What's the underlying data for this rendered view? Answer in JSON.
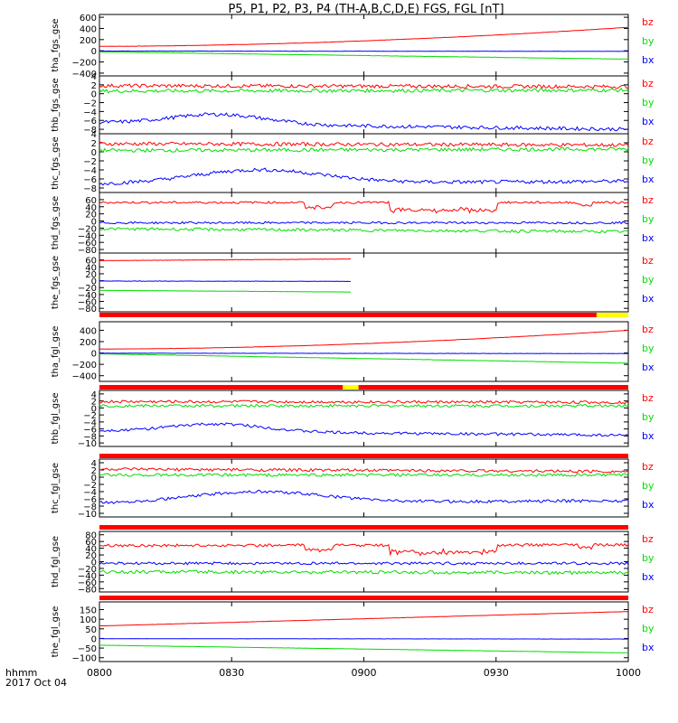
{
  "title": "P5, P1, P2, P3, P4 (TH-A,B,C,D,E) FGS, FGL [nT]",
  "colors": {
    "bx": "#0000ff",
    "by": "#00dd00",
    "bz": "#ff0000",
    "flag_ok": "#ff0000",
    "flag_gap": "#ffff00",
    "axis": "#000000"
  },
  "chart_data": {
    "type": "line",
    "title": "P5, P1, P2, P3, P4 (TH-A,B,C,D,E) FGS, FGL [nT]",
    "x_label": "hhmm",
    "x_sub_label": "2017 Oct 04",
    "x_ticks": [
      "0800",
      "0830",
      "0900",
      "0930",
      "1000"
    ],
    "x_range": [
      "08:00",
      "10:00"
    ],
    "legend": [
      "bz",
      "by",
      "bx"
    ],
    "panels": [
      {
        "ylabel": "tha_fgs_gse",
        "ylim": [
          -450,
          650
        ],
        "yticks": [
          600,
          400,
          200,
          0,
          -200,
          -400
        ],
        "yticklabels": [
          "600",
          "400",
          "200",
          "0",
          "−200",
          "−400"
        ],
        "end_hours": 2.0,
        "series": [
          {
            "name": "bz",
            "start": 80,
            "end": 420,
            "noise": 2,
            "curve": 1.8
          },
          {
            "name": "by",
            "start": -20,
            "end": -150,
            "noise": 2,
            "curve": 1
          },
          {
            "name": "bx",
            "start": -5,
            "end": -10,
            "noise": 2,
            "curve": 1
          }
        ]
      },
      {
        "ylabel": "thb_fgs_gse",
        "ylim": [
          -9,
          4
        ],
        "yticks": [
          4,
          2,
          0,
          -2,
          -4,
          -6,
          -8
        ],
        "yticklabels": [
          "4",
          "2",
          "0",
          "−2",
          "−4",
          "−6",
          "−8"
        ],
        "end_hours": 2.0,
        "series": [
          {
            "name": "bz",
            "start": 1.8,
            "end": 1.6,
            "noise": 0.4
          },
          {
            "name": "by",
            "start": 0.6,
            "end": 0.8,
            "noise": 0.4
          },
          {
            "name": "bx",
            "start": -6.5,
            "end": -8.0,
            "noise": 0.4,
            "bumps": [
              [
                0.45,
                -4.3,
                0.25
              ]
            ]
          }
        ]
      },
      {
        "ylabel": "thc_fgs_gse",
        "ylim": [
          -9,
          4
        ],
        "yticks": [
          4,
          2,
          0,
          -2,
          -4,
          -6,
          -8
        ],
        "yticklabels": [
          "4",
          "2",
          "0",
          "−2",
          "−4",
          "−6",
          "−8"
        ],
        "end_hours": 2.0,
        "series": [
          {
            "name": "bz",
            "start": 1.8,
            "end": 1.5,
            "noise": 0.4
          },
          {
            "name": "by",
            "start": 0.3,
            "end": 0.6,
            "noise": 0.4
          },
          {
            "name": "bx",
            "start": -7.2,
            "end": -6.5,
            "noise": 0.4,
            "bumps": [
              [
                0.6,
                -4.2,
                0.35
              ]
            ]
          }
        ]
      },
      {
        "ylabel": "thd_fgs_gse",
        "ylim": [
          -90,
          80
        ],
        "yticks": [
          60,
          40,
          20,
          0,
          -20,
          -40,
          -60,
          -80
        ],
        "yticklabels": [
          "60",
          "40",
          "20",
          "0",
          "−20",
          "−40",
          "−60",
          "−80"
        ],
        "end_hours": 2.0,
        "series": [
          {
            "name": "bz",
            "start": 52,
            "end": 52,
            "noise": 3,
            "dips": [
              [
                0.78,
                0.88,
                15
              ],
              [
                1.1,
                1.5,
                25
              ],
              [
                1.81,
                1.86,
                10
              ]
            ]
          },
          {
            "name": "by",
            "start": -22,
            "end": -30,
            "noise": 4
          },
          {
            "name": "bx",
            "start": -5,
            "end": -5,
            "noise": 3
          }
        ]
      },
      {
        "ylabel": "the_fgs_gse",
        "ylim": [
          -90,
          80
        ],
        "yticks": [
          60,
          40,
          20,
          0,
          -20,
          -40,
          -60,
          -80
        ],
        "yticklabels": [
          "60",
          "40",
          "20",
          "0",
          "−20",
          "−40",
          "−60",
          "−80"
        ],
        "end_hours": 0.95,
        "series": [
          {
            "name": "bz",
            "start": 58,
            "end": 68,
            "noise": 0.5
          },
          {
            "name": "by",
            "start": -28,
            "end": -38,
            "noise": 0.5
          },
          {
            "name": "bx",
            "start": -1,
            "end": -3,
            "noise": 0.5
          }
        ]
      },
      {
        "ylabel": "tha_fgl_gse",
        "ylim": [
          -500,
          550
        ],
        "yticks": [
          400,
          200,
          0,
          -200,
          -400
        ],
        "yticklabels": [
          "400",
          "200",
          "0",
          "−200",
          "−400"
        ],
        "end_hours": 2.0,
        "series": [
          {
            "name": "bz",
            "start": 70,
            "end": 400,
            "noise": 2,
            "curve": 1.8
          },
          {
            "name": "by",
            "start": -15,
            "end": -180,
            "noise": 2
          },
          {
            "name": "bx",
            "start": -4,
            "end": -10,
            "noise": 2
          }
        ]
      },
      {
        "ylabel": "thb_fgl_gse",
        "ylim": [
          -11,
          5
        ],
        "yticks": [
          4,
          2,
          0,
          -2,
          -4,
          -6,
          -8,
          -10
        ],
        "yticklabels": [
          "4",
          "2",
          "0",
          "−2",
          "−4",
          "−6",
          "−8",
          "−10"
        ],
        "end_hours": 2.0,
        "series": [
          {
            "name": "bz",
            "start": 1.8,
            "end": 1.6,
            "noise": 0.4
          },
          {
            "name": "by",
            "start": 0.6,
            "end": 0.6,
            "noise": 0.4
          },
          {
            "name": "bx",
            "start": -6.5,
            "end": -7.8,
            "noise": 0.4,
            "bumps": [
              [
                0.45,
                -4.3,
                0.25
              ]
            ]
          }
        ]
      },
      {
        "ylabel": "thc_fgl_gse",
        "ylim": [
          -11,
          5
        ],
        "yticks": [
          4,
          2,
          0,
          -2,
          -4,
          -6,
          -8,
          -10
        ],
        "yticklabels": [
          "4",
          "2",
          "0",
          "−2",
          "−4",
          "−6",
          "−8",
          "−10"
        ],
        "end_hours": 2.0,
        "series": [
          {
            "name": "bz",
            "start": 2.2,
            "end": 1.6,
            "noise": 0.4
          },
          {
            "name": "by",
            "start": 0.6,
            "end": 0.6,
            "noise": 0.4
          },
          {
            "name": "bx",
            "start": -7.2,
            "end": -6.5,
            "noise": 0.4,
            "bumps": [
              [
                0.6,
                -4.2,
                0.35
              ]
            ]
          }
        ]
      },
      {
        "ylabel": "thd_fgl_gse",
        "ylim": [
          -90,
          90
        ],
        "yticks": [
          80,
          60,
          40,
          20,
          0,
          -20,
          -40,
          -60,
          -80
        ],
        "yticklabels": [
          "80",
          "60",
          "40",
          "20",
          "0",
          "−20",
          "−40",
          "−60",
          "−80"
        ],
        "end_hours": 2.0,
        "series": [
          {
            "name": "bz",
            "start": 48,
            "end": 50,
            "noise": 4,
            "dips": [
              [
                0.78,
                0.88,
                15
              ],
              [
                1.1,
                1.5,
                25
              ],
              [
                1.81,
                1.86,
                10
              ]
            ]
          },
          {
            "name": "by",
            "start": -30,
            "end": -33,
            "noise": 5
          },
          {
            "name": "bx",
            "start": -5,
            "end": -5,
            "noise": 4
          }
        ]
      },
      {
        "ylabel": "the_fgl_gse",
        "ylim": [
          -120,
          190
        ],
        "yticks": [
          150,
          100,
          50,
          0,
          -50,
          -100
        ],
        "yticklabels": [
          "150",
          "100",
          "50",
          "0",
          "−50",
          "−100"
        ],
        "end_hours": 2.0,
        "series": [
          {
            "name": "bz",
            "start": 65,
            "end": 140,
            "noise": 0.5
          },
          {
            "name": "by",
            "start": -35,
            "end": -75,
            "noise": 0.5
          },
          {
            "name": "bx",
            "start": -1,
            "end": -3,
            "noise": 0.5
          }
        ]
      }
    ]
  }
}
